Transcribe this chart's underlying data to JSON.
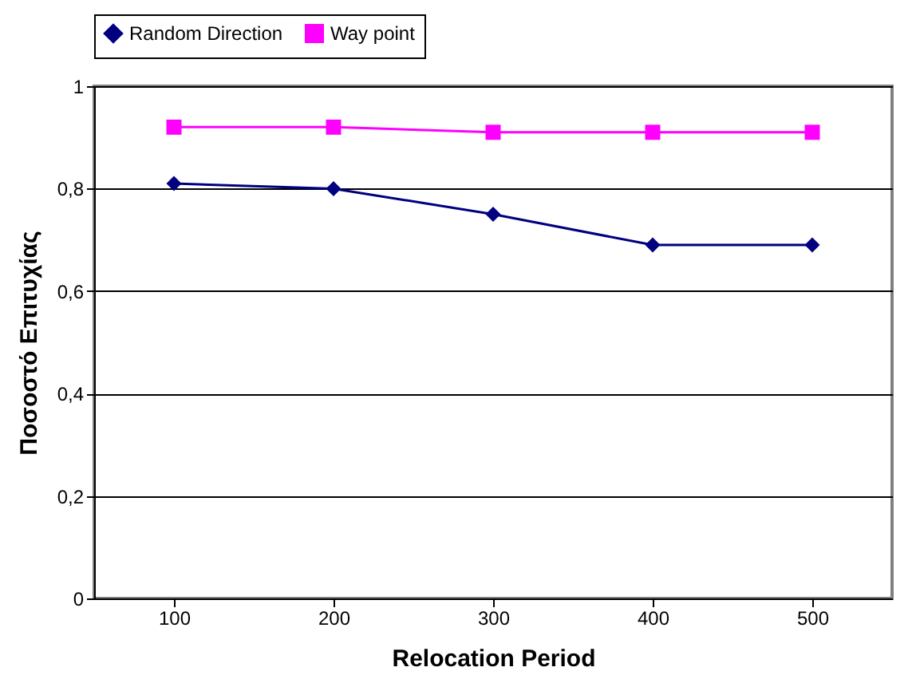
{
  "chart_data": {
    "type": "line",
    "xlabel": "Relocation Period",
    "ylabel": "Ποσοστό Επιτυχίας",
    "categories": [
      "100",
      "200",
      "300",
      "400",
      "500"
    ],
    "series": [
      {
        "name": "Random Direction",
        "color": "#000080",
        "marker": "diamond",
        "values": [
          0.81,
          0.8,
          0.75,
          0.69,
          0.69
        ]
      },
      {
        "name": "Way point",
        "color": "#ff00ff",
        "marker": "square",
        "values": [
          0.92,
          0.92,
          0.91,
          0.91,
          0.91
        ]
      }
    ],
    "ylim": [
      0,
      1
    ],
    "yticks": [
      0,
      {
        "value": 0.2,
        "label": "0,2"
      },
      {
        "value": 0.4,
        "label": "0,4"
      },
      {
        "value": 0.6,
        "label": "0,6"
      },
      {
        "value": 0.8,
        "label": "0,8"
      },
      1
    ],
    "grid": "y",
    "legend": "top",
    "line_style": "solid"
  }
}
